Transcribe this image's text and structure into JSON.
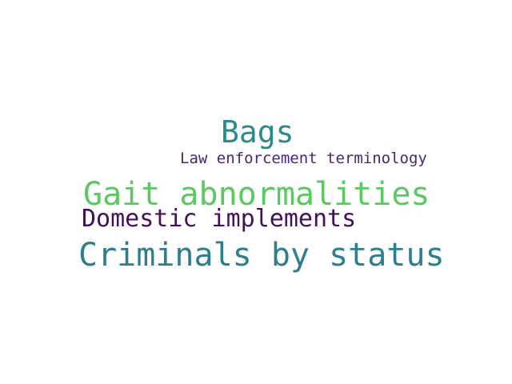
{
  "words": [
    {
      "text": "Bags",
      "color": "#2a8a8e"
    },
    {
      "text": "Law enforcement terminology",
      "color": "#482677"
    },
    {
      "text": "Gait abnormalities",
      "color": "#5cc863"
    },
    {
      "text": "Domestic implements",
      "color": "#440f5c"
    },
    {
      "text": "Criminals by status",
      "color": "#2e7f8e"
    }
  ]
}
